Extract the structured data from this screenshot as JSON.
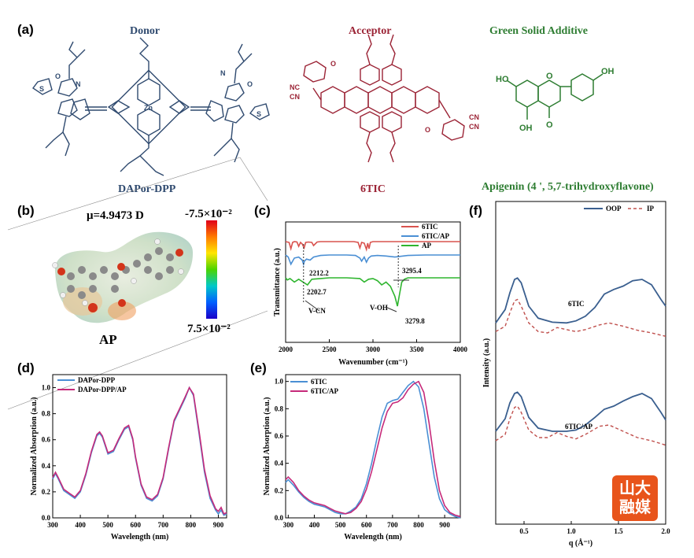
{
  "panels": {
    "a": "(a)",
    "b": "(b)",
    "c": "(c)",
    "d": "(d)",
    "e": "(e)",
    "f": "(f)"
  },
  "section_a": {
    "donor_title": "Donor",
    "acceptor_title": "Acceptor",
    "additive_title": "Green Solid Additive",
    "donor_name": "DAPor-DPP",
    "acceptor_name": "6TIC",
    "additive_name": "Apigenin (4 ', 5,7-trihydroxyflavone)",
    "atom_labels": [
      "Zn",
      "N",
      "O",
      "NC",
      "CN",
      "HO",
      "OH",
      "S"
    ]
  },
  "section_b": {
    "dipole": "μ=4.9473 D",
    "molecule": "AP",
    "scale_top": "-7.5×10⁻²",
    "scale_bottom": "7.5×10⁻²"
  },
  "logo": {
    "line1": "山大",
    "line2": "融媒"
  },
  "colors": {
    "red": "#d9534f",
    "blue": "#4a8fd4",
    "green": "#2fb52f",
    "navy": "#3a5f8f",
    "pink": "#c62a7a",
    "ip": "#c0504d"
  },
  "chart_data": [
    {
      "id": "c",
      "type": "line",
      "xlabel": "Wavenumber (cm⁻¹)",
      "ylabel": "Transmittance (a.u.)",
      "xlim": [
        2000,
        4000
      ],
      "xticks": [
        2000,
        2500,
        3000,
        3500,
        4000
      ],
      "legend": "top-right",
      "annotations": [
        "2212.2",
        "2202.7",
        "V-CN",
        "3295.4",
        "V-OH",
        "3279.8"
      ],
      "series": [
        {
          "name": "6TIC",
          "offset": 2,
          "x": [
            2000,
            2040,
            2060,
            2080,
            2100,
            2130,
            2150,
            2170,
            2190,
            2212,
            2230,
            2260,
            2300,
            2320,
            2360,
            2400,
            2500,
            2600,
            2700,
            2780,
            2830,
            2850,
            2870,
            2900,
            2925,
            2940,
            2955,
            2970,
            3000,
            3100,
            3200,
            3300,
            3400,
            3600,
            3800,
            4000
          ],
          "y": [
            0,
            -0.1,
            -0.9,
            -0.1,
            0,
            -0.05,
            -0.6,
            -0.1,
            -0.3,
            -0.8,
            -0.1,
            -0.05,
            -0.1,
            -0.5,
            -0.05,
            0,
            0,
            0,
            0,
            0,
            -0.1,
            -0.8,
            -0.1,
            -0.2,
            -1.0,
            -0.2,
            -0.9,
            -0.1,
            0,
            0,
            0,
            0,
            0,
            0,
            0,
            0
          ]
        },
        {
          "name": "6TIC/AP",
          "offset": 1,
          "x": [
            2000,
            2030,
            2060,
            2100,
            2150,
            2190,
            2205,
            2215,
            2240,
            2280,
            2320,
            2400,
            2500,
            2700,
            2800,
            2850,
            2870,
            2900,
            2925,
            2950,
            2980,
            3050,
            3150,
            3250,
            3300,
            3400,
            3600,
            3800,
            4000
          ],
          "y": [
            0,
            -0.2,
            -0.9,
            -0.3,
            -0.2,
            -0.5,
            -0.9,
            -0.6,
            -0.4,
            -0.5,
            -0.2,
            -0.05,
            0,
            0,
            -0.05,
            -0.3,
            -0.6,
            -0.2,
            -0.7,
            -0.3,
            -0.1,
            -0.05,
            -0.1,
            -0.2,
            -0.15,
            -0.05,
            0,
            0,
            0
          ]
        },
        {
          "name": "AP",
          "offset": 0,
          "x": [
            2000,
            2020,
            2050,
            2100,
            2150,
            2200,
            2250,
            2300,
            2400,
            2500,
            2700,
            2850,
            2900,
            2950,
            3000,
            3050,
            3100,
            3150,
            3200,
            3250,
            3280,
            3300,
            3330,
            3360,
            3400,
            3500,
            3600,
            3800,
            4000
          ],
          "y": [
            0,
            -0.15,
            -0.05,
            -0.3,
            -0.1,
            -0.3,
            -0.5,
            -0.1,
            -0.05,
            0,
            0,
            -0.05,
            -0.3,
            -0.1,
            -0.05,
            -0.2,
            -0.5,
            -0.3,
            -0.6,
            -1.3,
            -2.0,
            -1.3,
            -0.3,
            -0.1,
            0,
            0,
            0,
            0,
            0
          ]
        }
      ]
    },
    {
      "id": "d",
      "type": "line",
      "xlabel": "Wavelength (nm)",
      "ylabel": "Normalized Absorption (a.u.)",
      "xlim": [
        300,
        930
      ],
      "ylim": [
        0,
        1.1
      ],
      "xticks": [
        300,
        400,
        500,
        600,
        700,
        800,
        900
      ],
      "yticks": [
        0.0,
        0.2,
        0.4,
        0.6,
        0.8,
        1.0
      ],
      "legend": "top-left",
      "series": [
        {
          "name": "DAPor-DPP",
          "x": [
            300,
            310,
            320,
            340,
            360,
            380,
            400,
            420,
            440,
            460,
            470,
            480,
            500,
            520,
            540,
            560,
            575,
            590,
            600,
            620,
            640,
            660,
            680,
            700,
            720,
            740,
            760,
            780,
            795,
            810,
            830,
            850,
            870,
            890,
            900,
            910,
            920,
            930
          ],
          "y": [
            0.3,
            0.34,
            0.3,
            0.21,
            0.18,
            0.15,
            0.2,
            0.33,
            0.5,
            0.63,
            0.65,
            0.62,
            0.49,
            0.51,
            0.6,
            0.68,
            0.7,
            0.6,
            0.46,
            0.25,
            0.15,
            0.13,
            0.17,
            0.3,
            0.53,
            0.74,
            0.83,
            0.92,
            1.0,
            0.94,
            0.65,
            0.35,
            0.15,
            0.06,
            0.03,
            0.06,
            0.02,
            0.03
          ]
        },
        {
          "name": "DAPor-DPP/AP",
          "x": [
            300,
            310,
            320,
            340,
            360,
            380,
            400,
            420,
            440,
            460,
            470,
            480,
            500,
            520,
            540,
            560,
            575,
            590,
            600,
            620,
            640,
            660,
            680,
            700,
            720,
            740,
            760,
            780,
            795,
            810,
            830,
            850,
            870,
            890,
            900,
            910,
            920,
            930
          ],
          "y": [
            0.31,
            0.35,
            0.31,
            0.22,
            0.19,
            0.16,
            0.21,
            0.34,
            0.51,
            0.64,
            0.66,
            0.63,
            0.5,
            0.52,
            0.61,
            0.69,
            0.71,
            0.61,
            0.47,
            0.26,
            0.16,
            0.14,
            0.18,
            0.31,
            0.54,
            0.75,
            0.84,
            0.93,
            1.0,
            0.95,
            0.67,
            0.37,
            0.17,
            0.07,
            0.05,
            0.08,
            0.03,
            0.04
          ]
        }
      ]
    },
    {
      "id": "e",
      "type": "line",
      "xlabel": "Wavelength (nm)",
      "ylabel": "Normalized Absorption (a.u.)",
      "xlim": [
        290,
        960
      ],
      "ylim": [
        0,
        1.05
      ],
      "xticks": [
        300,
        400,
        500,
        600,
        700,
        800,
        900
      ],
      "yticks": [
        0.0,
        0.2,
        0.4,
        0.6,
        0.8,
        1.0
      ],
      "legend": "top-left",
      "series": [
        {
          "name": "6TIC",
          "x": [
            290,
            300,
            320,
            340,
            360,
            380,
            400,
            420,
            440,
            460,
            480,
            500,
            520,
            540,
            560,
            580,
            600,
            620,
            640,
            660,
            680,
            700,
            720,
            740,
            760,
            780,
            800,
            820,
            840,
            860,
            880,
            900,
            920,
            940,
            960
          ],
          "y": [
            0.26,
            0.28,
            0.24,
            0.19,
            0.15,
            0.12,
            0.1,
            0.09,
            0.08,
            0.06,
            0.04,
            0.03,
            0.03,
            0.05,
            0.08,
            0.14,
            0.25,
            0.4,
            0.58,
            0.74,
            0.84,
            0.86,
            0.87,
            0.92,
            0.97,
            1.0,
            0.96,
            0.8,
            0.55,
            0.3,
            0.14,
            0.06,
            0.03,
            0.01,
            0.0
          ]
        },
        {
          "name": "6TIC/AP",
          "x": [
            290,
            300,
            320,
            340,
            360,
            380,
            400,
            420,
            440,
            460,
            480,
            500,
            520,
            540,
            560,
            580,
            600,
            620,
            640,
            660,
            680,
            700,
            720,
            740,
            760,
            780,
            800,
            820,
            840,
            860,
            880,
            900,
            920,
            940,
            960
          ],
          "y": [
            0.28,
            0.3,
            0.26,
            0.2,
            0.16,
            0.13,
            0.11,
            0.1,
            0.09,
            0.07,
            0.05,
            0.04,
            0.03,
            0.04,
            0.07,
            0.12,
            0.21,
            0.34,
            0.5,
            0.66,
            0.78,
            0.84,
            0.85,
            0.88,
            0.94,
            0.98,
            1.0,
            0.92,
            0.7,
            0.42,
            0.2,
            0.09,
            0.04,
            0.02,
            0.01
          ]
        }
      ]
    },
    {
      "id": "f",
      "type": "line",
      "xlabel": "q (Å⁻¹)",
      "ylabel": "Intensity (a.u.)",
      "xlim": [
        0.2,
        2.0
      ],
      "xticks": [
        0.5,
        1.0,
        1.5,
        2.0
      ],
      "xticklabels": [
        "0.5",
        "1.0",
        "1.5",
        "2.0"
      ],
      "legend": "top-right",
      "annotations": [
        "6TIC",
        "6TIC/AP"
      ],
      "groups": [
        {
          "label": "6TIC",
          "offset": 1,
          "series": [
            {
              "name": "OOP",
              "x": [
                0.2,
                0.3,
                0.35,
                0.4,
                0.43,
                0.47,
                0.55,
                0.65,
                0.8,
                0.95,
                1.05,
                1.15,
                1.25,
                1.35,
                1.45,
                1.55,
                1.65,
                1.75,
                1.85,
                1.95,
                2.0
              ],
              "y": [
                0.35,
                0.55,
                0.8,
                1.0,
                1.02,
                0.95,
                0.6,
                0.42,
                0.36,
                0.35,
                0.38,
                0.45,
                0.58,
                0.78,
                0.85,
                0.9,
                0.98,
                1.0,
                0.92,
                0.7,
                0.6
              ]
            },
            {
              "name": "IP",
              "x": [
                0.2,
                0.3,
                0.35,
                0.4,
                0.43,
                0.47,
                0.55,
                0.65,
                0.75,
                0.85,
                0.95,
                1.05,
                1.15,
                1.3,
                1.4,
                1.55,
                1.7,
                1.85,
                2.0
              ],
              "y": [
                0.22,
                0.3,
                0.5,
                0.68,
                0.7,
                0.6,
                0.35,
                0.22,
                0.2,
                0.28,
                0.25,
                0.22,
                0.25,
                0.32,
                0.35,
                0.3,
                0.24,
                0.2,
                0.15
              ]
            }
          ]
        },
        {
          "label": "6TIC/AP",
          "offset": 0,
          "series": [
            {
              "name": "OOP",
              "x": [
                0.2,
                0.3,
                0.35,
                0.4,
                0.43,
                0.47,
                0.55,
                0.65,
                0.8,
                0.95,
                1.05,
                1.15,
                1.25,
                1.35,
                1.45,
                1.55,
                1.65,
                1.75,
                1.85,
                1.95,
                2.0
              ],
              "y": [
                0.4,
                0.6,
                0.85,
                1.0,
                1.02,
                0.95,
                0.62,
                0.45,
                0.4,
                0.4,
                0.42,
                0.5,
                0.62,
                0.75,
                0.8,
                0.88,
                0.95,
                1.0,
                0.92,
                0.7,
                0.58
              ]
            },
            {
              "name": "IP",
              "x": [
                0.2,
                0.3,
                0.35,
                0.4,
                0.43,
                0.47,
                0.55,
                0.65,
                0.75,
                0.85,
                0.95,
                1.05,
                1.15,
                1.3,
                1.4,
                1.55,
                1.7,
                1.85,
                2.0
              ],
              "y": [
                0.25,
                0.35,
                0.6,
                0.78,
                0.8,
                0.7,
                0.42,
                0.3,
                0.3,
                0.38,
                0.32,
                0.28,
                0.35,
                0.48,
                0.5,
                0.4,
                0.3,
                0.25,
                0.18
              ]
            }
          ]
        }
      ]
    }
  ]
}
